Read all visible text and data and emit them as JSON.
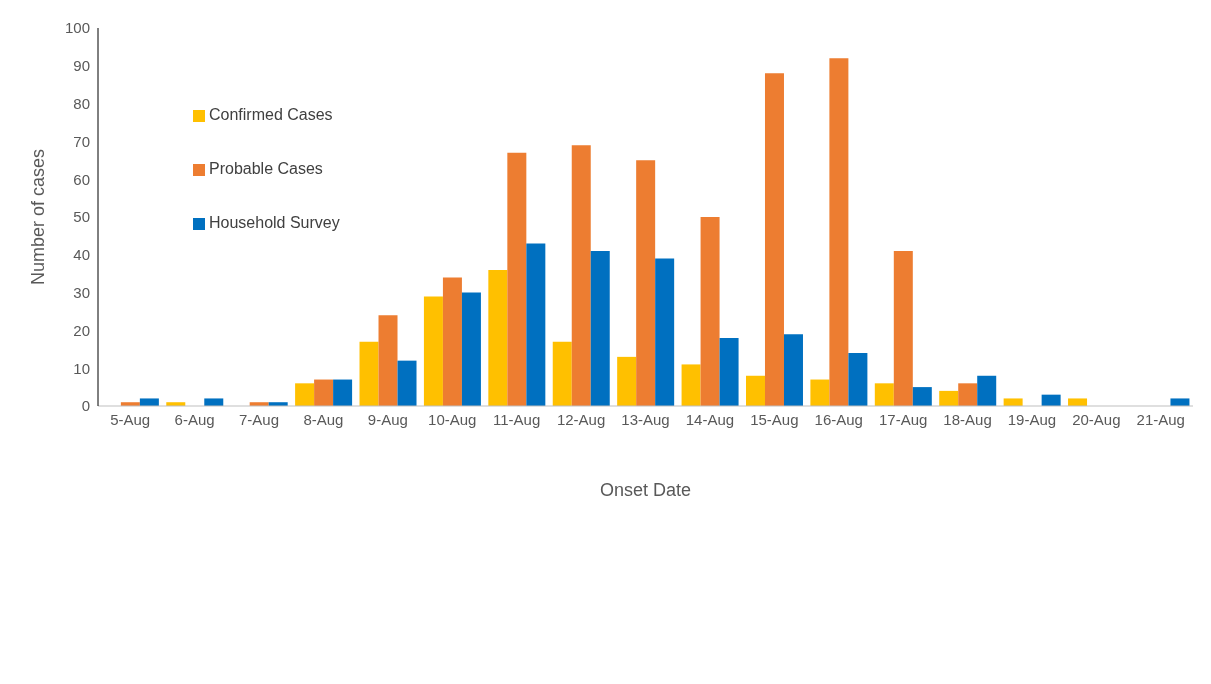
{
  "chart_data": {
    "type": "bar",
    "xlabel": "Onset Date",
    "ylabel": "Number of cases",
    "categories": [
      "5-Aug",
      "6-Aug",
      "7-Aug",
      "8-Aug",
      "9-Aug",
      "10-Aug",
      "11-Aug",
      "12-Aug",
      "13-Aug",
      "14-Aug",
      "15-Aug",
      "16-Aug",
      "17-Aug",
      "18-Aug",
      "19-Aug",
      "20-Aug",
      "21-Aug"
    ],
    "series": [
      {
        "name": "Confirmed Cases",
        "color": "#ffc000",
        "values": [
          0,
          1,
          0,
          6,
          17,
          29,
          36,
          17,
          13,
          11,
          8,
          7,
          6,
          4,
          2,
          2,
          0
        ]
      },
      {
        "name": "Probable Cases",
        "color": "#ed7d31",
        "values": [
          1,
          0,
          1,
          7,
          24,
          34,
          67,
          69,
          65,
          50,
          88,
          92,
          41,
          6,
          0,
          0,
          0
        ]
      },
      {
        "name": "Household Survey",
        "color": "#0070c0",
        "values": [
          2,
          2,
          1,
          7,
          12,
          30,
          43,
          41,
          39,
          18,
          19,
          14,
          5,
          8,
          3,
          0,
          2
        ]
      }
    ],
    "ylim": [
      0,
      100
    ],
    "yticks": [
      0,
      10,
      20,
      30,
      40,
      50,
      60,
      70,
      80,
      90,
      100
    ],
    "grid": false,
    "legend": "top left"
  }
}
